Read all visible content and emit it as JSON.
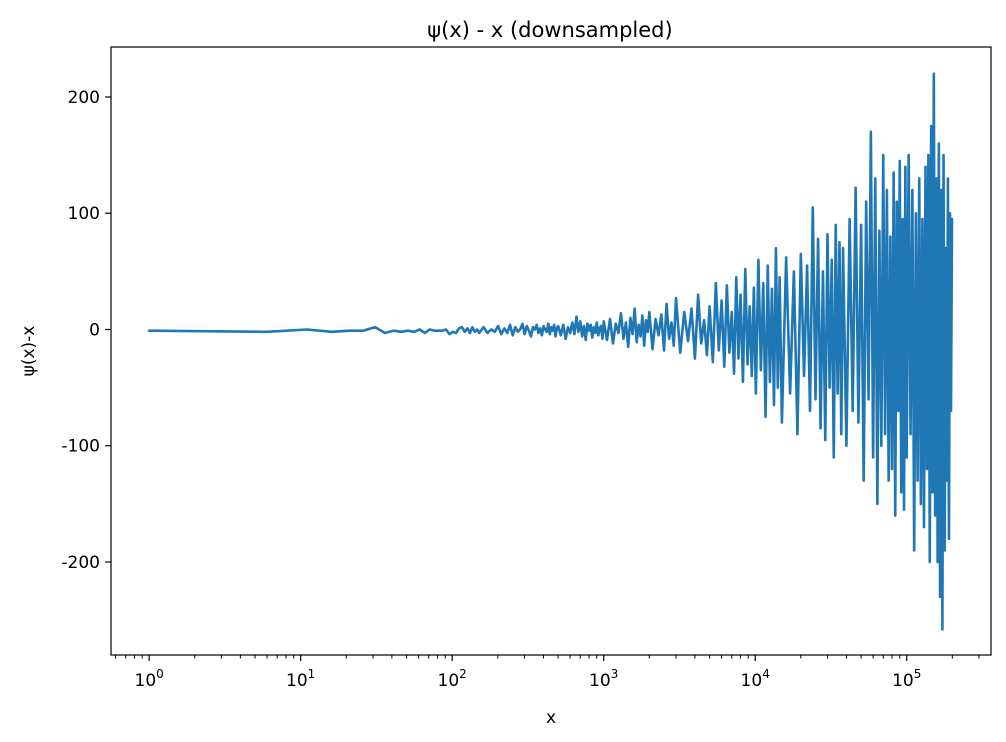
{
  "chart_data": {
    "type": "line",
    "title": "ψ(x) - x (downsampled)",
    "xlabel": "x",
    "ylabel": "ψ(x)-x",
    "x_scale": "log",
    "xlim": [
      0.56,
      360000
    ],
    "ylim": [
      -280,
      243
    ],
    "grid": false,
    "x_ticks": [
      {
        "value": 1,
        "base": "10",
        "exp": "0"
      },
      {
        "value": 10,
        "base": "10",
        "exp": "1"
      },
      {
        "value": 100,
        "base": "10",
        "exp": "2"
      },
      {
        "value": 1000,
        "base": "10",
        "exp": "3"
      },
      {
        "value": 10000,
        "base": "10",
        "exp": "4"
      },
      {
        "value": 100000,
        "base": "10",
        "exp": "5"
      }
    ],
    "y_ticks": [
      {
        "value": 200,
        "label": "200"
      },
      {
        "value": 100,
        "label": "100"
      },
      {
        "value": 0,
        "label": "0"
      },
      {
        "value": -100,
        "label": "-100"
      },
      {
        "value": -200,
        "label": "-200"
      }
    ],
    "series": [
      {
        "color": "#1f77b4",
        "points": [
          [
            1,
            -1
          ],
          [
            6,
            -2
          ],
          [
            11,
            0
          ],
          [
            16,
            -2
          ],
          [
            21,
            -1
          ],
          [
            26,
            -1
          ],
          [
            31,
            2
          ],
          [
            36,
            -3
          ],
          [
            41,
            -1
          ],
          [
            46,
            -2
          ],
          [
            51,
            -1
          ],
          [
            56,
            -2
          ],
          [
            61,
            0
          ],
          [
            66,
            -3
          ],
          [
            71,
            0
          ],
          [
            76,
            -1
          ],
          [
            81,
            -1
          ],
          [
            86,
            -1
          ],
          [
            91,
            0
          ],
          [
            96,
            -4
          ],
          [
            101,
            -2
          ],
          [
            106,
            -3
          ],
          [
            111,
            1
          ],
          [
            116,
            2
          ],
          [
            121,
            -2
          ],
          [
            126,
            1
          ],
          [
            131,
            -3
          ],
          [
            136,
            2
          ],
          [
            141,
            -2
          ],
          [
            146,
            0
          ],
          [
            151,
            -3
          ],
          [
            161,
            2
          ],
          [
            171,
            -3
          ],
          [
            181,
            0
          ],
          [
            191,
            -2
          ],
          [
            201,
            3
          ],
          [
            211,
            -4
          ],
          [
            221,
            1
          ],
          [
            231,
            -3
          ],
          [
            241,
            4
          ],
          [
            251,
            -5
          ],
          [
            261,
            2
          ],
          [
            271,
            -2
          ],
          [
            281,
            0
          ],
          [
            291,
            5
          ],
          [
            301,
            -4
          ],
          [
            311,
            3
          ],
          [
            321,
            -1
          ],
          [
            331,
            -6
          ],
          [
            341,
            2
          ],
          [
            351,
            0
          ],
          [
            361,
            4
          ],
          [
            371,
            -3
          ],
          [
            381,
            1
          ],
          [
            391,
            -5
          ],
          [
            401,
            3
          ],
          [
            411,
            0
          ],
          [
            421,
            -2
          ],
          [
            431,
            5
          ],
          [
            441,
            -4
          ],
          [
            451,
            2
          ],
          [
            461,
            -1
          ],
          [
            471,
            4
          ],
          [
            481,
            -6
          ],
          [
            491,
            1
          ],
          [
            501,
            3
          ],
          [
            521,
            -5
          ],
          [
            541,
            4
          ],
          [
            561,
            -8
          ],
          [
            581,
            2
          ],
          [
            601,
            -3
          ],
          [
            621,
            6
          ],
          [
            641,
            -4
          ],
          [
            661,
            11
          ],
          [
            681,
            -2
          ],
          [
            701,
            7
          ],
          [
            721,
            -6
          ],
          [
            741,
            3
          ],
          [
            761,
            -9
          ],
          [
            781,
            5
          ],
          [
            801,
            -1
          ],
          [
            821,
            4
          ],
          [
            841,
            -7
          ],
          [
            861,
            2
          ],
          [
            881,
            -3
          ],
          [
            901,
            6
          ],
          [
            921,
            -5
          ],
          [
            941,
            1
          ],
          [
            961,
            3
          ],
          [
            981,
            -8
          ],
          [
            1001,
            7
          ],
          [
            1051,
            -9
          ],
          [
            1101,
            9
          ],
          [
            1151,
            -12
          ],
          [
            1201,
            5
          ],
          [
            1251,
            -3
          ],
          [
            1301,
            14
          ],
          [
            1351,
            -8
          ],
          [
            1401,
            6
          ],
          [
            1451,
            -15
          ],
          [
            1501,
            10
          ],
          [
            1551,
            -4
          ],
          [
            1601,
            18
          ],
          [
            1651,
            -11
          ],
          [
            1701,
            4
          ],
          [
            1751,
            -6
          ],
          [
            1801,
            12
          ],
          [
            1851,
            -14
          ],
          [
            1901,
            8
          ],
          [
            1951,
            -2
          ],
          [
            2001,
            15
          ],
          [
            2101,
            -17
          ],
          [
            2201,
            9
          ],
          [
            2301,
            -5
          ],
          [
            2401,
            13
          ],
          [
            2501,
            -18
          ],
          [
            2601,
            22
          ],
          [
            2701,
            -8
          ],
          [
            2801,
            6
          ],
          [
            2901,
            -14
          ],
          [
            3001,
            27
          ],
          [
            3201,
            -20
          ],
          [
            3401,
            15
          ],
          [
            3601,
            -10
          ],
          [
            3801,
            18
          ],
          [
            4001,
            -25
          ],
          [
            4201,
            30
          ],
          [
            4401,
            -12
          ],
          [
            4601,
            8
          ],
          [
            4801,
            -22
          ],
          [
            5001,
            20
          ],
          [
            5251,
            -28
          ],
          [
            5501,
            40
          ],
          [
            5751,
            -18
          ],
          [
            6001,
            25
          ],
          [
            6251,
            -32
          ],
          [
            6501,
            38
          ],
          [
            6751,
            -20
          ],
          [
            7001,
            15
          ],
          [
            7251,
            -38
          ],
          [
            7501,
            45
          ],
          [
            7751,
            -25
          ],
          [
            8001,
            30
          ],
          [
            8301,
            -45
          ],
          [
            8601,
            52
          ],
          [
            8901,
            -30
          ],
          [
            9201,
            20
          ],
          [
            9501,
            -40
          ],
          [
            9801,
            36
          ],
          [
            10101,
            -55
          ],
          [
            10501,
            60
          ],
          [
            10901,
            -35
          ],
          [
            11301,
            40
          ],
          [
            11701,
            -75
          ],
          [
            12101,
            55
          ],
          [
            12501,
            -45
          ],
          [
            12901,
            35
          ],
          [
            13301,
            -65
          ],
          [
            13701,
            70
          ],
          [
            14101,
            -50
          ],
          [
            14501,
            45
          ],
          [
            15001,
            -80
          ],
          [
            16001,
            62
          ],
          [
            17001,
            -55
          ],
          [
            18001,
            50
          ],
          [
            19001,
            -90
          ],
          [
            20001,
            65
          ],
          [
            21001,
            -40
          ],
          [
            22001,
            55
          ],
          [
            23001,
            -70
          ],
          [
            24001,
            105
          ],
          [
            25001,
            -60
          ],
          [
            26001,
            78
          ],
          [
            27001,
            -85
          ],
          [
            28001,
            50
          ],
          [
            29001,
            -95
          ],
          [
            30001,
            82
          ],
          [
            31001,
            -50
          ],
          [
            32001,
            60
          ],
          [
            33001,
            -110
          ],
          [
            34001,
            90
          ],
          [
            35001,
            -55
          ],
          [
            36001,
            75
          ],
          [
            37001,
            -90
          ],
          [
            38001,
            70
          ],
          [
            40001,
            -100
          ],
          [
            42001,
            95
          ],
          [
            44001,
            -70
          ],
          [
            46001,
            122
          ],
          [
            48001,
            -80
          ],
          [
            50001,
            90
          ],
          [
            52001,
            -130
          ],
          [
            54001,
            110
          ],
          [
            56001,
            -60
          ],
          [
            58001,
            170
          ],
          [
            60001,
            -110
          ],
          [
            62001,
            130
          ],
          [
            64001,
            -150
          ],
          [
            66001,
            85
          ],
          [
            68001,
            -100
          ],
          [
            70001,
            150
          ],
          [
            72001,
            -90
          ],
          [
            74001,
            120
          ],
          [
            76001,
            -130
          ],
          [
            78001,
            80
          ],
          [
            80001,
            -120
          ],
          [
            82001,
            135
          ],
          [
            84001,
            -160
          ],
          [
            86001,
            110
          ],
          [
            88001,
            -70
          ],
          [
            90001,
            145
          ],
          [
            92001,
            -140
          ],
          [
            94001,
            95
          ],
          [
            96001,
            -155
          ],
          [
            98001,
            140
          ],
          [
            100001,
            -110
          ],
          [
            103001,
            150
          ],
          [
            106001,
            -90
          ],
          [
            109001,
            120
          ],
          [
            112001,
            -190
          ],
          [
            115001,
            100
          ],
          [
            118001,
            -130
          ],
          [
            121001,
            130
          ],
          [
            124001,
            -150
          ],
          [
            127001,
            95
          ],
          [
            130001,
            -170
          ],
          [
            133001,
            140
          ],
          [
            136001,
            -120
          ],
          [
            139001,
            150
          ],
          [
            142001,
            -200
          ],
          [
            145001,
            175
          ],
          [
            148001,
            -140
          ],
          [
            151001,
            220
          ],
          [
            154001,
            -160
          ],
          [
            157001,
            130
          ],
          [
            160001,
            -200
          ],
          [
            163001,
            160
          ],
          [
            166001,
            -230
          ],
          [
            169001,
            120
          ],
          [
            172001,
            -258
          ],
          [
            175001,
            150
          ],
          [
            178001,
            -190
          ],
          [
            181001,
            70
          ],
          [
            184001,
            -130
          ],
          [
            187001,
            130
          ],
          [
            190001,
            -180
          ],
          [
            193001,
            100
          ],
          [
            196001,
            -70
          ],
          [
            199001,
            95
          ]
        ]
      }
    ]
  }
}
